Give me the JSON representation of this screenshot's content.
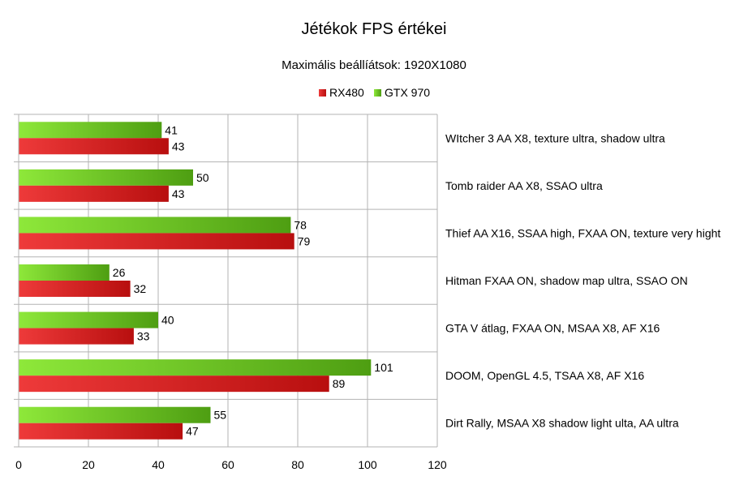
{
  "chart_data": {
    "type": "bar",
    "orientation": "horizontal",
    "title": "Jétékok FPS értékei",
    "subtitle": "Maximális beállíátsok: 1920X1080",
    "xlabel": "",
    "ylabel": "",
    "xlim": [
      0,
      120
    ],
    "x_ticks": [
      "0",
      "20",
      "40",
      "60",
      "80",
      "100",
      "120"
    ],
    "grid": true,
    "legend_position": "top",
    "categories": [
      "WItcher 3 AA X8, texture ultra, shadow ultra",
      "Tomb raider AA X8, SSAO ultra",
      "Thief AA X16, SSAA high, FXAA ON, texture very hight",
      "Hitman FXAA ON, shadow map ultra, SSAO ON",
      "GTA V átlag, FXAA ON, MSAA X8, AF X16",
      "DOOM, OpenGL 4.5, TSAA X8, AF X16",
      "Dirt Rally, MSAA X8 shadow light ulta, AA ultra"
    ],
    "series": [
      {
        "name": "RX480",
        "color": "#d41c1c",
        "values": [
          43,
          43,
          79,
          32,
          33,
          89,
          47
        ]
      },
      {
        "name": "GTX 970",
        "color": "#6cc21c",
        "values": [
          41,
          50,
          78,
          26,
          40,
          101,
          55
        ]
      }
    ]
  }
}
